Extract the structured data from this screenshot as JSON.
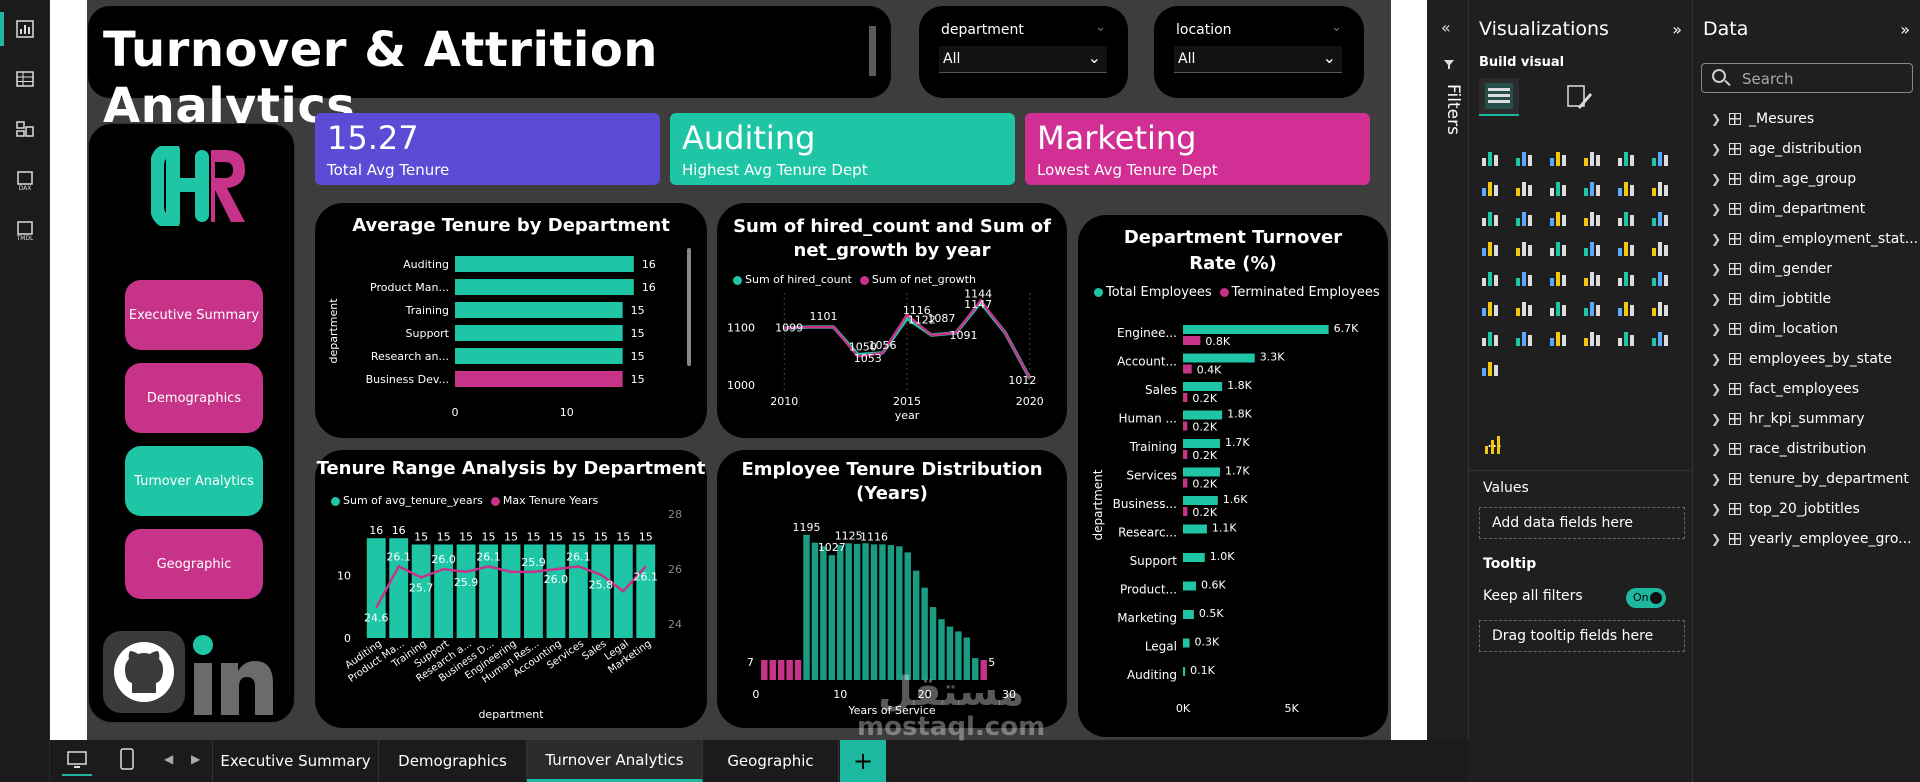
{
  "left_rail": {
    "icons": [
      "report-view-icon",
      "table-view-icon",
      "model-view-icon",
      "dax-query-icon",
      "tmdl-view-icon"
    ],
    "labels": {
      "dax": "DAX",
      "tmdl": "TMDL"
    }
  },
  "header": {
    "title": "Turnover & Attrition Analytics"
  },
  "slicers": [
    {
      "label": "department",
      "value": "All"
    },
    {
      "label": "location",
      "value": "All"
    }
  ],
  "nav": {
    "buttons": [
      "Executive Summary",
      "Demographics",
      "Turnover Analytics",
      "Geographic"
    ]
  },
  "kpis": [
    {
      "value": "15.27",
      "label": "Total Avg Tenure",
      "color": "#5b4bd5"
    },
    {
      "value": "Auditing",
      "label": "Highest Avg Tenure Dept",
      "color": "#1ec6a6"
    },
    {
      "value": "Marketing",
      "label": "Lowest Avg Tenure Dept",
      "color": "#d12f94"
    }
  ],
  "colors": {
    "teal": "#1ec6a6",
    "magenta": "#c8338a",
    "purple": "#5b4bd5"
  },
  "chart_data": [
    {
      "id": "avg_tenure",
      "type": "bar",
      "title": "Average Tenure by Department",
      "ylabel": "department",
      "categories": [
        "Auditing",
        "Product Man...",
        "Training",
        "Support",
        "Research an...",
        "Business Dev..."
      ],
      "values": [
        16,
        16,
        15,
        15,
        15,
        15
      ],
      "highlight": [
        false,
        false,
        false,
        false,
        false,
        true
      ],
      "xticks": [
        "0",
        "10"
      ],
      "xlim": [
        0,
        17
      ]
    },
    {
      "id": "hired_growth",
      "type": "line",
      "title": "Sum of hired_count and Sum of net_growth by year",
      "xlabel": "year",
      "series": [
        {
          "name": "Sum of hired_count",
          "x": [
            2010,
            2011,
            2012,
            2013,
            2014,
            2015,
            2016,
            2017,
            2018,
            2019,
            2020
          ],
          "values": [
            1099,
            1101,
            1101,
            1053,
            1056,
            1116,
            1087,
            1091,
            1144,
            1091,
            1012
          ]
        },
        {
          "name": "Sum of net_growth",
          "x": [
            2010,
            2011,
            2012,
            2013,
            2014,
            2015,
            2016,
            2017,
            2018,
            2019,
            2020
          ],
          "values": [
            1099,
            1101,
            1101,
            1050,
            1056,
            1122,
            1087,
            1091,
            1147,
            1091,
            1012
          ]
        }
      ],
      "labels": [
        {
          "text": "1099",
          "x": 2010.2,
          "y": 1093
        },
        {
          "text": "1101",
          "x": 2011.6,
          "y": 1113
        },
        {
          "text": "1050",
          "x": 2013.2,
          "y": 1060
        },
        {
          "text": "1053",
          "x": 2013.4,
          "y": 1040
        },
        {
          "text": "1056",
          "x": 2014.0,
          "y": 1063
        },
        {
          "text": "1116",
          "x": 2015.4,
          "y": 1124
        },
        {
          "text": "1122",
          "x": 2015.6,
          "y": 1107
        },
        {
          "text": "1087",
          "x": 2016.4,
          "y": 1110
        },
        {
          "text": "1091",
          "x": 2017.3,
          "y": 1080
        },
        {
          "text": "1144",
          "x": 2017.9,
          "y": 1152
        },
        {
          "text": "1147",
          "x": 2017.9,
          "y": 1134
        },
        {
          "text": "1012",
          "x": 2019.7,
          "y": 1002
        }
      ],
      "xticks": [
        "2010",
        "2015",
        "2020"
      ],
      "yticks": [
        "1000",
        "1100"
      ],
      "xlim": [
        2009.5,
        2020.5
      ],
      "ylim": [
        990,
        1160
      ]
    },
    {
      "id": "turnover_rate",
      "type": "bar",
      "title": "Department Turnover Rate (%)",
      "ylabel": "department",
      "categories": [
        "Enginee...",
        "Account...",
        "Sales",
        "Human ...",
        "Training",
        "Services",
        "Business...",
        "Researc...",
        "Support",
        "Product...",
        "Marketing",
        "Legal",
        "Auditing"
      ],
      "series": [
        {
          "name": "Total Employees",
          "values": [
            6.7,
            3.3,
            1.8,
            1.8,
            1.7,
            1.7,
            1.6,
            1.1,
            1.0,
            0.6,
            0.5,
            0.3,
            0.1
          ]
        },
        {
          "name": "Terminated Employees",
          "values": [
            0.8,
            0.4,
            0.2,
            0.2,
            0.2,
            0.2,
            0.2,
            null,
            null,
            null,
            null,
            null,
            null
          ]
        }
      ],
      "value_labels_total": [
        "6.7K",
        "3.3K",
        "1.8K",
        "1.8K",
        "1.7K",
        "1.7K",
        "1.6K",
        "1.1K",
        "1.0K",
        "0.6K",
        "0.5K",
        "0.3K",
        "0.1K"
      ],
      "value_labels_terminated": [
        "0.8K",
        "0.4K",
        "0.2K",
        "0.2K",
        "0.2K",
        "0.2K",
        "0.2K",
        "",
        "",
        "",
        "",
        "",
        ""
      ],
      "xticks": [
        "0K",
        "5K"
      ],
      "xlim": [
        0,
        7.5
      ]
    },
    {
      "id": "tenure_range",
      "type": "bar",
      "title": "Tenure Range Analysis by Department",
      "xlabel": "department",
      "categories": [
        "Auditing",
        "Product Ma...",
        "Training",
        "Support",
        "Research a...",
        "Business D...",
        "Engineering",
        "Human Res...",
        "Accounting",
        "Services",
        "Sales",
        "Legal",
        "Marketing"
      ],
      "series": [
        {
          "name": "Sum of avg_tenure_years",
          "values": [
            16,
            16,
            15,
            15,
            15,
            15,
            15,
            15,
            15,
            15,
            15,
            15,
            15
          ]
        },
        {
          "name": "Max Tenure Years",
          "values": [
            24.6,
            26.1,
            25.7,
            26.0,
            25.9,
            26.1,
            25.9,
            25.9,
            26.0,
            26.1,
            25.8,
            25.2,
            26.1
          ]
        }
      ],
      "line_labels": [
        "24.6",
        "26.1",
        "25.7",
        "26.0",
        "25.9",
        "26.1",
        "25.9",
        "25.9",
        "26.0",
        "26.1",
        "25.8",
        "25.2",
        "26.1"
      ],
      "line_label_idx": [
        0,
        1,
        2,
        3,
        4,
        5,
        7,
        8,
        9,
        10,
        12
      ],
      "yticks_left": [
        "0",
        "10"
      ],
      "yticks_right": [
        "24",
        "26",
        "28"
      ],
      "ylim_left": [
        0,
        17
      ],
      "ylim_right": [
        23.5,
        28
      ]
    },
    {
      "id": "tenure_dist",
      "type": "bar",
      "title": "Employee Tenure Distribution (Years)",
      "xlabel": "Years of Service",
      "x": [
        1,
        2,
        3,
        4,
        5,
        6,
        7,
        8,
        9,
        10,
        11,
        12,
        13,
        14,
        15,
        16,
        17,
        18,
        19,
        20,
        21,
        22,
        23,
        24,
        25,
        26,
        27
      ],
      "values": [
        7,
        7,
        7,
        7,
        7,
        1195,
        1130,
        1100,
        1027,
        1110,
        1125,
        1120,
        1125,
        1116,
        1116,
        1110,
        1100,
        1050,
        900,
        760,
        600,
        500,
        440,
        400,
        350,
        180,
        5
      ],
      "highlight_idx": [
        0,
        1,
        2,
        3,
        4,
        26
      ],
      "value_labels": [
        {
          "text": "7",
          "i": 0
        },
        {
          "text": "1195",
          "i": 5
        },
        {
          "text": "1027",
          "i": 8
        },
        {
          "text": "1125",
          "i": 10
        },
        {
          "text": "1116",
          "i": 13
        },
        {
          "text": "5",
          "i": 26
        }
      ],
      "xticks": [
        "0",
        "10",
        "20",
        "30"
      ],
      "xlim": [
        -2,
        30
      ],
      "ylim": [
        0,
        1300
      ]
    }
  ],
  "filters_pane": {
    "label": "Filters"
  },
  "viz_pane": {
    "title": "Visualizations",
    "subtitle": "Build visual",
    "values_label": "Values",
    "values_drop": "Add data fields here",
    "tooltip_label": "Tooltip",
    "keep_filters": "Keep all filters",
    "toggle_text": "On",
    "tooltip_drop": "Drag tooltip fields here",
    "more": "..."
  },
  "data_pane": {
    "title": "Data",
    "search_placeholder": "Search",
    "items": [
      "_Mesures",
      "age_distribution",
      "dim_age_group",
      "dim_department",
      "dim_employment_stat...",
      "dim_gender",
      "dim_jobtitle",
      "dim_location",
      "employees_by_state",
      "fact_employees",
      "hr_kpi_summary",
      "race_distribution",
      "tenure_by_department",
      "top_20_jobtitles",
      "yearly_employee_gro..."
    ]
  },
  "tabs": [
    {
      "label": "Executive Summary",
      "active": false
    },
    {
      "label": "Demographics",
      "active": false
    },
    {
      "label": "Turnover Analytics",
      "active": true
    },
    {
      "label": "Geographic",
      "active": false
    }
  ],
  "watermark": {
    "arabic": "مستقل",
    "latin": "mostaql.com"
  }
}
